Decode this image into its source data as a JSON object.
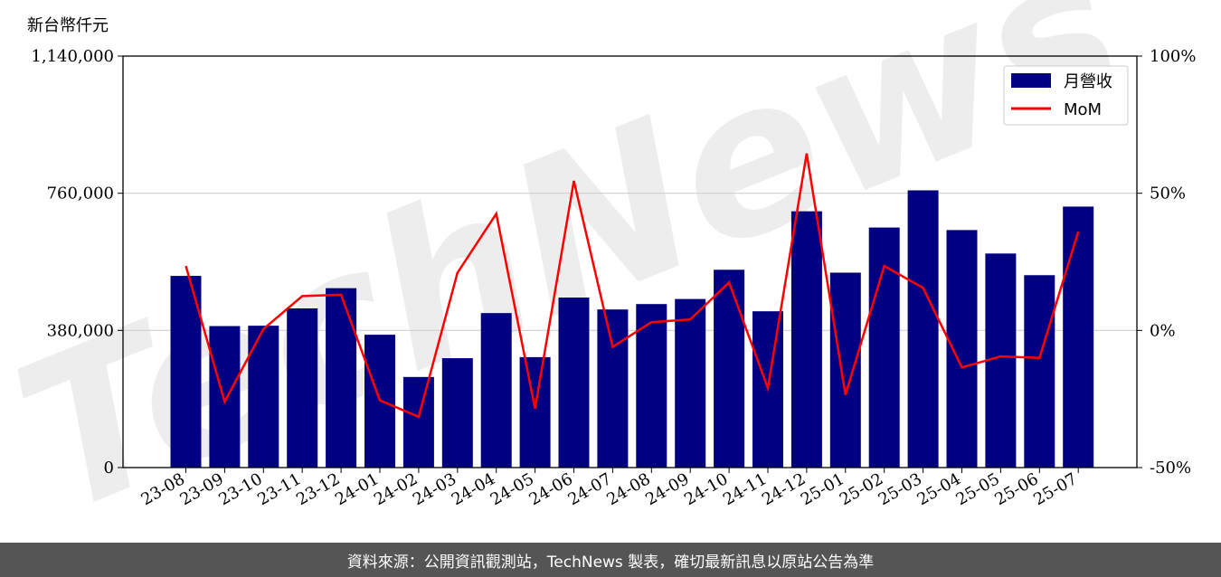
{
  "chart_data": {
    "type": "bar",
    "y_unit_label": "新台幣仟元",
    "categories": [
      "23-08",
      "23-09",
      "23-10",
      "23-11",
      "23-12",
      "24-01",
      "24-02",
      "24-03",
      "24-04",
      "24-05",
      "24-06",
      "24-07",
      "24-08",
      "24-09",
      "24-10",
      "24-11",
      "24-12",
      "25-01",
      "25-02",
      "25-03",
      "25-04",
      "25-05",
      "25-06",
      "25-07"
    ],
    "series": [
      {
        "name": "月營收",
        "kind": "bar",
        "axis": "left",
        "color": "#000080",
        "values": [
          531000,
          392000,
          393000,
          441000,
          497000,
          368000,
          251000,
          303000,
          428000,
          306000,
          471000,
          438000,
          453000,
          467000,
          548000,
          433000,
          710000,
          540000,
          665000,
          768000,
          658000,
          593000,
          533000,
          723000
        ]
      },
      {
        "name": "MoM",
        "kind": "line",
        "axis": "right",
        "color": "#ff0000",
        "values": [
          23.5,
          -26.0,
          0.5,
          12.5,
          13.0,
          -25.5,
          -31.5,
          21.0,
          42.5,
          -28.5,
          54.5,
          -6.0,
          3.0,
          4.0,
          17.5,
          -21.0,
          64.5,
          -23.5,
          23.5,
          15.5,
          -13.5,
          -9.5,
          -10.0,
          36.0
        ]
      }
    ],
    "y_left": {
      "range": [
        0,
        1140000
      ],
      "ticks": [
        0,
        380000,
        760000,
        1140000
      ],
      "tick_labels": [
        "0",
        "380,000",
        "760,000",
        "1,140,000"
      ]
    },
    "y_right": {
      "range": [
        -50,
        100
      ],
      "ticks": [
        -50,
        0,
        50,
        100
      ],
      "tick_labels": [
        "-50%",
        "0%",
        "50%",
        "100%"
      ]
    },
    "grid": "horizontal",
    "legend_position": "top-right",
    "watermark": "TechNews"
  },
  "footer": {
    "text": "資料來源：公開資訊觀測站，TechNews 製表，確切最新訊息以原站公告為準"
  }
}
